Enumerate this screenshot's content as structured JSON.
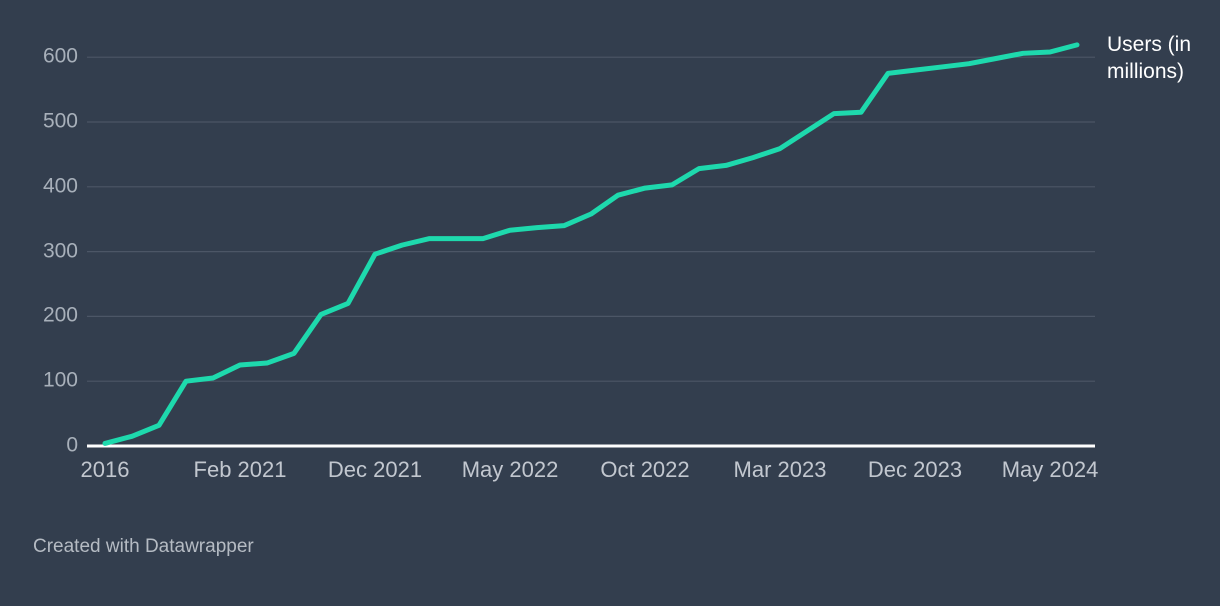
{
  "chart_data": {
    "type": "line",
    "series_label": "Users (in millions)",
    "ylabel": "Users (in millions)",
    "xlabel": "",
    "ylim": [
      0,
      620
    ],
    "grid": "horizontal",
    "legend_position": "right-of-line-end",
    "y_ticks": [
      0,
      100,
      200,
      300,
      400,
      500,
      600
    ],
    "x_tick_labels": [
      "2016",
      "Feb 2021",
      "Dec 2021",
      "May 2022",
      "Oct 2022",
      "Mar 2023",
      "Dec 2023",
      "May 2024"
    ],
    "x_tick_indices": [
      0,
      5,
      10,
      15,
      20,
      25,
      30,
      35
    ],
    "categories": [
      "2016",
      "",
      "",
      "",
      "",
      "Feb 2021",
      "",
      "",
      "",
      "",
      "Dec 2021",
      "",
      "",
      "",
      "",
      "May 2022",
      "",
      "",
      "",
      "",
      "Oct 2022",
      "",
      "",
      "",
      "",
      "Mar 2023",
      "",
      "",
      "",
      "",
      "Dec 2023",
      "",
      "",
      "",
      "",
      "May 2024",
      ""
    ],
    "series": [
      {
        "name": "Users (in millions)",
        "values": [
          4,
          15,
          32,
          100,
          105,
          125,
          128,
          143,
          203,
          220,
          296,
          310,
          320,
          320,
          320,
          333,
          337,
          340,
          358,
          387,
          398,
          403,
          428,
          433,
          445,
          459,
          486,
          513,
          515,
          575,
          580,
          585,
          590,
          598,
          606,
          608,
          619
        ]
      }
    ],
    "colors": {
      "background": "#333e4e",
      "line": "#1ed9ad",
      "gridline": "#4c5666",
      "axis_line": "#ffffff",
      "y_tick_label": "#a8b0ba",
      "x_tick_label": "#c2c7cf",
      "series_label_text": "#ffffff",
      "attribution_text": "#b5bbc3"
    }
  },
  "footer": {
    "attribution": "Created with Datawrapper"
  }
}
